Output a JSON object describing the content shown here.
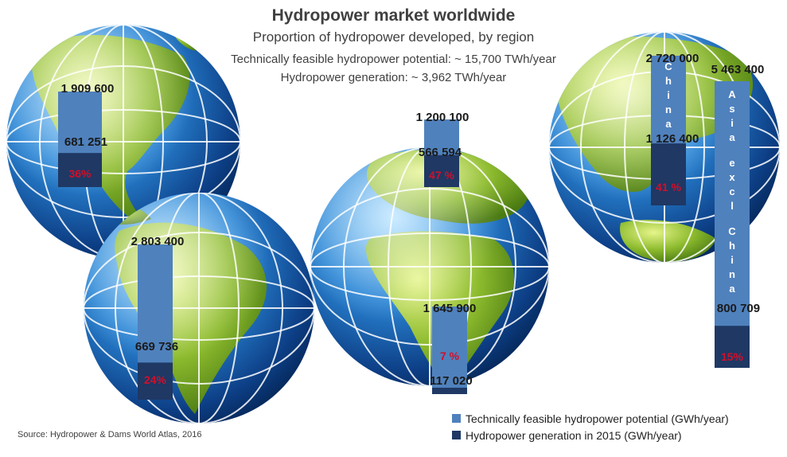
{
  "title": "Hydropower market worldwide",
  "subtitle": "Proportion of hydropower developed, by region",
  "notes": {
    "potential": "Technically feasible hydropower potential: ~ 15,700 TWh/year",
    "generation": "Hydropower generation: ~ 3,962 TWh/year"
  },
  "source": "Source: Hydropower & Dams World Atlas, 2016",
  "colors": {
    "potential": "#4f81bd",
    "generation": "#1f3864",
    "percent": "#d0102a",
    "ocean": "#1e73c8",
    "land": "#8dbb2e"
  },
  "chart_data": {
    "type": "bar",
    "title": "Hydropower market worldwide",
    "subtitle": "Proportion of hydropower developed, by region",
    "legend_placement": "bottom-right",
    "series": [
      {
        "name": "Technically feasible hydropower potential (GWh/year)",
        "color": "#4f81bd"
      },
      {
        "name": "Hydropower generation in 2015 (GWh/year)",
        "color": "#1f3864"
      }
    ],
    "regions": [
      {
        "name": "",
        "potential_label": "1 909 600",
        "generation_label": "681 251",
        "potential": 1909600,
        "generation": 681251,
        "percent": "36%"
      },
      {
        "name": "",
        "potential_label": "2 803 400",
        "generation_label": "669 736",
        "potential": 2803400,
        "generation": 669736,
        "percent": "24%"
      },
      {
        "name": "",
        "potential_label": "1 200 100",
        "generation_label": "566 594",
        "potential": 1200100,
        "generation": 566594,
        "percent": "47 %"
      },
      {
        "name": "",
        "potential_label": "1 645 900",
        "generation_label": "117 020",
        "potential": 1645900,
        "generation": 117020,
        "percent": "7 %"
      },
      {
        "name": "China",
        "potential_label": "2 720 000",
        "generation_label": "1 126 400",
        "potential": 2720000,
        "generation": 1126400,
        "percent": "41 %"
      },
      {
        "name": "Asia excl China",
        "potential_label": "5 463 400",
        "generation_label": "800 709",
        "potential": 5463400,
        "generation": 800709,
        "percent": "15%"
      }
    ]
  }
}
